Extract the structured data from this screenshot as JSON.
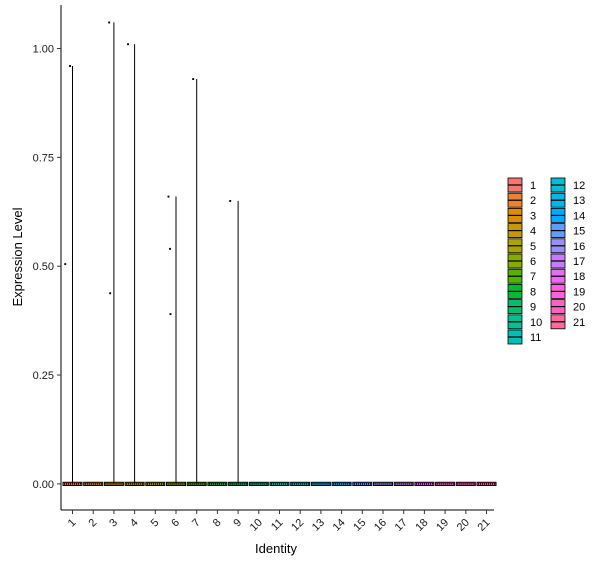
{
  "chart_data": {
    "type": "violin",
    "xlabel": "Identity",
    "ylabel": "Expression Level",
    "ylim": [
      -0.06,
      1.1
    ],
    "yticks": [
      0.0,
      0.25,
      0.5,
      0.75,
      1.0
    ],
    "ytick_labels": [
      "0.00",
      "0.25",
      "0.50",
      "0.75",
      "1.00"
    ],
    "categories": [
      "1",
      "2",
      "3",
      "4",
      "5",
      "6",
      "7",
      "8",
      "9",
      "10",
      "11",
      "12",
      "13",
      "14",
      "15",
      "16",
      "17",
      "18",
      "19",
      "20",
      "21"
    ],
    "max_values": [
      0.96,
      0.0,
      1.06,
      1.01,
      0.0,
      0.66,
      0.93,
      0.0,
      0.65,
      0.0,
      0.0,
      0.0,
      0.0,
      0.0,
      0.0,
      0.0,
      0.0,
      0.0,
      0.0,
      0.0,
      0.0
    ],
    "points": [
      {
        "category": "1",
        "value": 0.96
      },
      {
        "category": "1",
        "value": 0.505
      },
      {
        "category": "3",
        "value": 1.06
      },
      {
        "category": "3",
        "value": 0.438
      },
      {
        "category": "4",
        "value": 1.01
      },
      {
        "category": "6",
        "value": 0.66
      },
      {
        "category": "6",
        "value": 0.54
      },
      {
        "category": "6",
        "value": 0.39
      },
      {
        "category": "7",
        "value": 0.93
      },
      {
        "category": "9",
        "value": 0.65
      }
    ],
    "grid": false,
    "legend_position": "right",
    "legend_columns": 2,
    "colors": [
      "#F8766D",
      "#EB8335",
      "#DA8F00",
      "#C49A00",
      "#A9A400",
      "#86AC00",
      "#53B400",
      "#00BA38",
      "#00BE6D",
      "#00C094",
      "#00C0B7",
      "#00BDD5",
      "#00B6EB",
      "#00ABFD",
      "#619CFF",
      "#9A8EFF",
      "#C77CFF",
      "#E76BF3",
      "#FA62DB",
      "#FF61C1",
      "#FF6A9C"
    ]
  }
}
